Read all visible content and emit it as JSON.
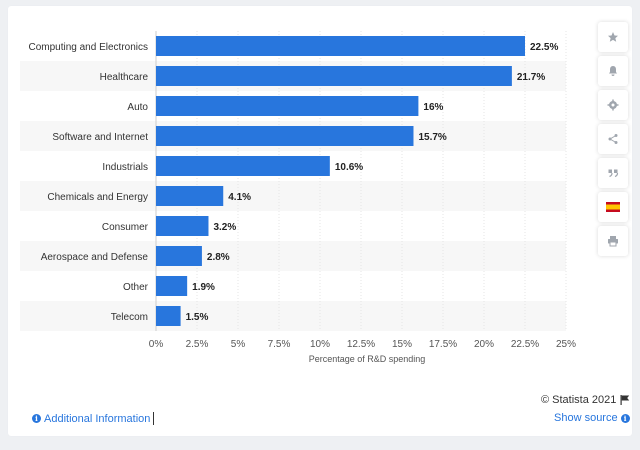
{
  "chart_data": {
    "type": "bar",
    "orientation": "horizontal",
    "categories": [
      "Computing and Electronics",
      "Healthcare",
      "Auto",
      "Software and Internet",
      "Industrials",
      "Chemicals and Energy",
      "Consumer",
      "Aerospace and Defense",
      "Other",
      "Telecom"
    ],
    "values": [
      22.5,
      21.7,
      16,
      15.7,
      10.6,
      4.1,
      3.2,
      2.8,
      1.9,
      1.5
    ],
    "value_labels": [
      "22.5%",
      "21.7%",
      "16%",
      "15.7%",
      "10.6%",
      "4.1%",
      "3.2%",
      "2.8%",
      "1.9%",
      "1.5%"
    ],
    "xlabel": "Percentage of R&D spending",
    "ylabel": "",
    "xlim": [
      0,
      25
    ],
    "ticks": [
      0,
      2.5,
      5,
      7.5,
      10,
      12.5,
      15,
      17.5,
      20,
      22.5,
      25
    ],
    "tick_labels": [
      "0%",
      "2.5%",
      "5%",
      "7.5%",
      "10%",
      "12.5%",
      "15%",
      "17.5%",
      "20%",
      "22.5%",
      "25%"
    ],
    "grid": true,
    "legend": "none",
    "bar_color": "#2876dd"
  },
  "footer": {
    "additional_info": "Additional Information",
    "copyright": "© Statista 2021",
    "show_source": "Show source"
  },
  "toolbar": [
    "star-icon",
    "bell-icon",
    "gear-icon",
    "share-icon",
    "quote-icon",
    "flag-spain-icon",
    "print-icon"
  ]
}
